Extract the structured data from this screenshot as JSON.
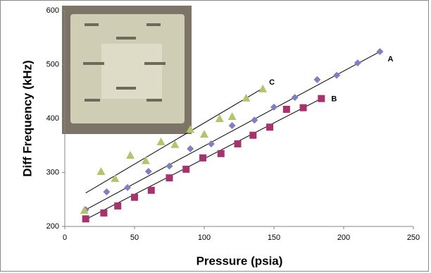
{
  "chart_data": {
    "type": "scatter",
    "xlabel": "Pressure (psia)",
    "ylabel": "Diff Frequency (kHz)",
    "xlim": [
      0,
      250
    ],
    "xticks": [
      0,
      50,
      100,
      150,
      200,
      250
    ],
    "ylim": [
      200,
      600
    ],
    "yticks": [
      200,
      300,
      400,
      500,
      600
    ],
    "grid": false,
    "series": [
      {
        "name": "A",
        "color": "#7f7fc4",
        "marker": "diamond",
        "x": [
          15,
          30,
          45,
          60,
          75,
          90,
          105,
          120,
          136,
          150,
          165,
          181,
          195,
          210,
          226
        ],
        "values": [
          231,
          264,
          272,
          302,
          312,
          344,
          353,
          387,
          397,
          421,
          439,
          472,
          480,
          503,
          524
        ],
        "fit_x": [
          15,
          226
        ],
        "fit_y": [
          231,
          524
        ]
      },
      {
        "name": "B",
        "color": "#a8336c",
        "marker": "square",
        "x": [
          15,
          28,
          38,
          50,
          62,
          75,
          87,
          99,
          112,
          124,
          135,
          147,
          159,
          171,
          184
        ],
        "values": [
          214,
          225,
          238,
          254,
          267,
          290,
          306,
          327,
          335,
          353,
          369,
          384,
          417,
          420,
          437
        ],
        "fit_x": [
          15,
          184
        ],
        "fit_y": [
          213,
          437
        ]
      },
      {
        "name": "C",
        "color": "#b3c46a",
        "marker": "triangle",
        "x": [
          14,
          26,
          36,
          47,
          58,
          69,
          79,
          90,
          100,
          111,
          120,
          130,
          142
        ],
        "values": [
          230,
          302,
          289,
          332,
          322,
          357,
          352,
          380,
          371,
          400,
          404,
          438,
          455
        ],
        "fit_x": [
          15,
          142
        ],
        "fit_y": [
          262,
          456
        ]
      }
    ]
  }
}
